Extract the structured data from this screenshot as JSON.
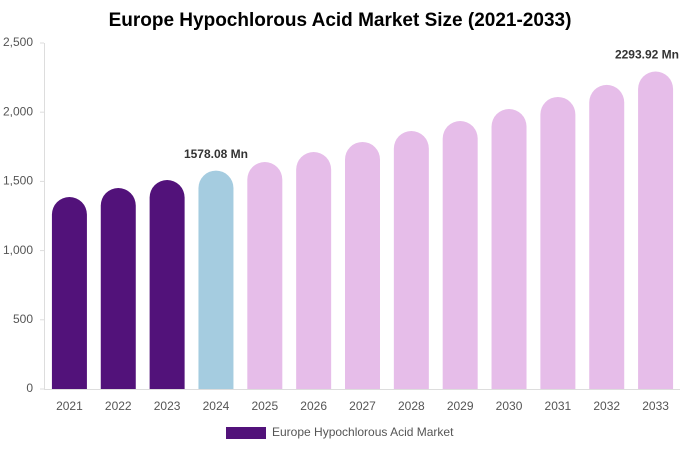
{
  "chart_data": {
    "type": "bar",
    "title": "Europe Hypochlorous Acid Market Size (2021-2033)",
    "categories": [
      "2021",
      "2022",
      "2023",
      "2024",
      "2025",
      "2026",
      "2027",
      "2028",
      "2029",
      "2030",
      "2031",
      "2032",
      "2033"
    ],
    "series": [
      {
        "name": "Europe Hypochlorous Acid Market",
        "color": "#52127a",
        "colors": [
          "#52127a",
          "#52127a",
          "#52127a",
          "#a5cce0",
          "#e6bde9",
          "#e6bde9",
          "#e6bde9",
          "#e6bde9",
          "#e6bde9",
          "#e6bde9",
          "#e6bde9",
          "#e6bde9",
          "#e6bde9"
        ],
        "values": [
          1387,
          1452,
          1510,
          1578.08,
          1640,
          1712,
          1785,
          1864,
          1936,
          2023,
          2110,
          2197,
          2293.92
        ],
        "value_labels": [
          null,
          null,
          null,
          "1578.08 Mn",
          null,
          null,
          null,
          null,
          null,
          null,
          null,
          null,
          "2293.92 Mn"
        ]
      }
    ],
    "ylim": [
      0,
      2500
    ],
    "yticks": [
      0,
      500,
      {
        "value": 1000,
        "label": "1,000"
      },
      {
        "value": 1500,
        "label": "1,500"
      },
      {
        "value": 2000,
        "label": "2,000"
      },
      {
        "value": 2500,
        "label": "2,500"
      }
    ],
    "legend": "bottom"
  }
}
